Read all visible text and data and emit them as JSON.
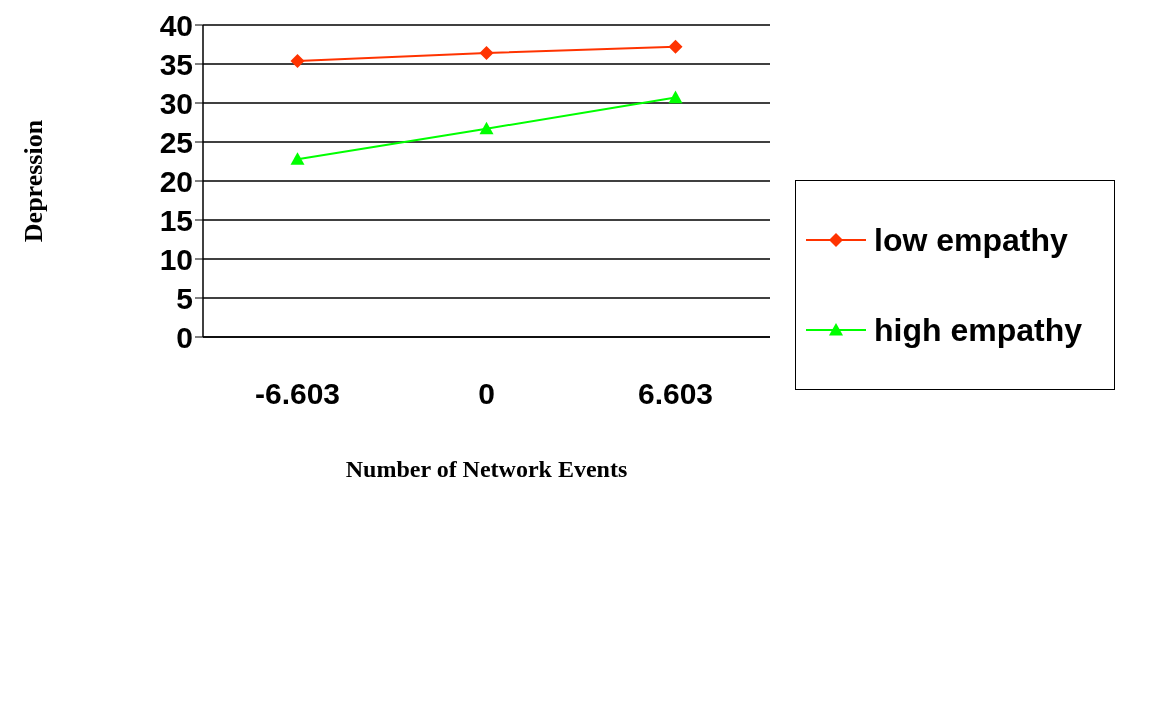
{
  "chart_data": {
    "type": "line",
    "xlabel": "Number of Network Events",
    "ylabel": "Depression",
    "categories": [
      "-6.603",
      "0",
      "6.603"
    ],
    "series": [
      {
        "name": "low empathy",
        "color": "#ff3300",
        "values": [
          35.4,
          36.4,
          37.2
        ],
        "marker": "diamond"
      },
      {
        "name": "high empathy",
        "color": "#00ff00",
        "values": [
          22.8,
          26.7,
          30.7
        ],
        "marker": "triangle"
      }
    ],
    "ylim": [
      0,
      40
    ],
    "yticks": [
      0,
      5,
      10,
      15,
      20,
      25,
      30,
      35,
      40
    ],
    "grid": "y",
    "legend": "right"
  }
}
